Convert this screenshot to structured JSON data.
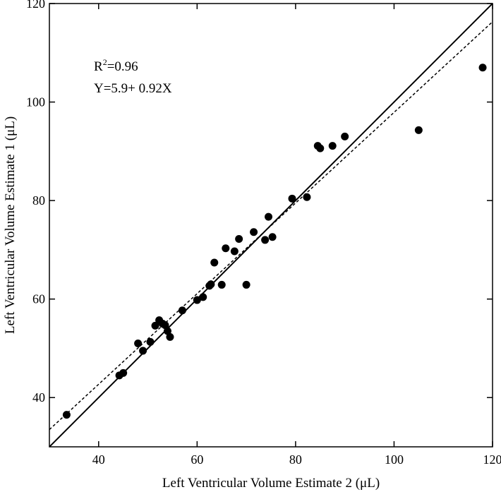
{
  "chart_data": {
    "type": "scatter",
    "title": "",
    "xlabel": "Left Ventricular Volume Estimate 2 (μL)",
    "ylabel": "Left Ventricular Volume Estimate 1 (μL)",
    "xlim": [
      30,
      120
    ],
    "ylim": [
      30,
      120
    ],
    "xticks": [
      40,
      60,
      80,
      100,
      120
    ],
    "yticks": [
      40,
      60,
      80,
      100,
      120
    ],
    "grid": false,
    "annotations": {
      "r2_prefix": "R",
      "r2_sup": "2",
      "r2_value": "=0.96",
      "equation": "Y=5.9+ 0.92X"
    },
    "fit_line": {
      "style": "dashed",
      "intercept": 5.9,
      "slope": 0.92
    },
    "identity_line": {
      "style": "solid",
      "intercept": 0,
      "slope": 1
    },
    "series": [
      {
        "points": [
          [
            33.5,
            36.5
          ],
          [
            44.2,
            44.5
          ],
          [
            45.0,
            45.0
          ],
          [
            48.0,
            51.0
          ],
          [
            49.0,
            49.5
          ],
          [
            50.5,
            51.3
          ],
          [
            51.5,
            54.6
          ],
          [
            52.3,
            55.7
          ],
          [
            53.0,
            55.0
          ],
          [
            53.5,
            54.7
          ],
          [
            54.0,
            53.5
          ],
          [
            54.5,
            52.3
          ],
          [
            57.0,
            57.7
          ],
          [
            60.0,
            59.8
          ],
          [
            61.2,
            60.4
          ],
          [
            62.5,
            62.7
          ],
          [
            62.8,
            63.0
          ],
          [
            63.5,
            67.4
          ],
          [
            65.0,
            62.9
          ],
          [
            65.8,
            70.3
          ],
          [
            67.6,
            69.7
          ],
          [
            68.5,
            72.2
          ],
          [
            70.0,
            62.9
          ],
          [
            71.5,
            73.6
          ],
          [
            73.8,
            72.0
          ],
          [
            74.5,
            76.7
          ],
          [
            75.3,
            72.6
          ],
          [
            79.3,
            80.4
          ],
          [
            82.3,
            80.7
          ],
          [
            84.5,
            91.1
          ],
          [
            85.0,
            90.6
          ],
          [
            87.5,
            91.1
          ],
          [
            90.0,
            93.0
          ],
          [
            105.0,
            94.3
          ],
          [
            118.0,
            107.0
          ]
        ]
      }
    ]
  }
}
